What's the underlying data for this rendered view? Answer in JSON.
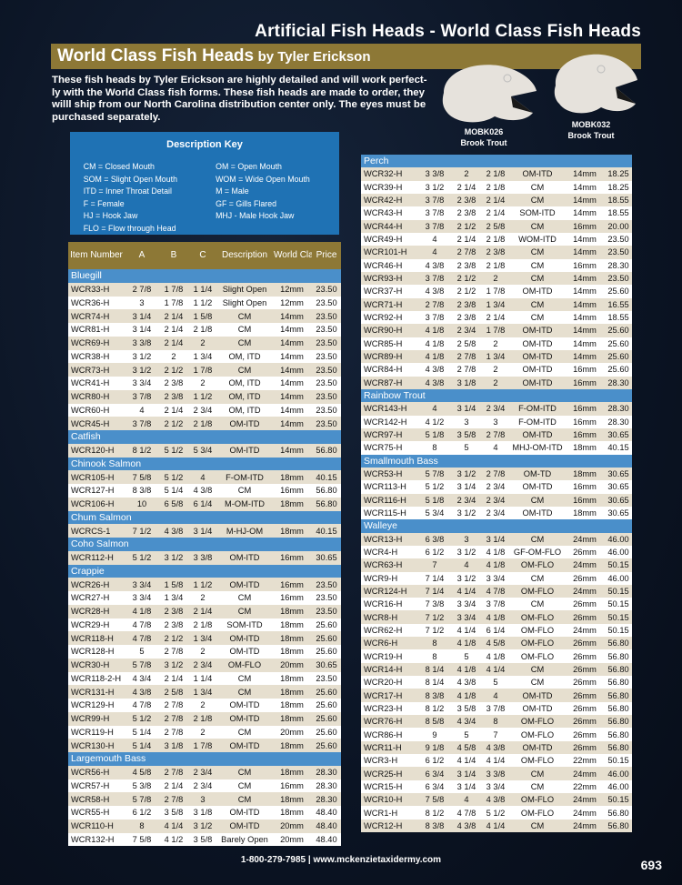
{
  "page_title": "Artificial Fish Heads - World Class Fish Heads",
  "banner": {
    "title": "World Class Fish Heads",
    "byline": "by Tyler Erickson"
  },
  "intro": "These fish heads by Tyler Erickson are highly detailed and will work perfect-ly with the World Class fish forms. These fish heads are made to order, they willl ship from our North Carolina distribution center only. The eyes must be purchased separately.",
  "products": [
    {
      "code": "MOBK026",
      "name": "Brook Trout"
    },
    {
      "code": "MOBK032",
      "name": "Brook Trout"
    }
  ],
  "key": {
    "title": "Description Key",
    "items": [
      "CM = Closed Mouth",
      "OM = Open Mouth",
      "SOM = Slight Open Mouth",
      "WOM = Wide Open Mouth",
      "ITD = Inner Throat Detail",
      "M = Male",
      "F = Female",
      "GF = Gills Flared",
      "HJ = Hook Jaw",
      "MHJ - Male Hook Jaw",
      "FLO = Flow through Head"
    ]
  },
  "columns": [
    "Item Number",
    "A",
    "B",
    "C",
    "Description",
    "World Class Eye",
    "Price"
  ],
  "left_table": [
    {
      "section": "Bluegill",
      "rows": [
        [
          "WCR33-H",
          "2 7/8",
          "1 7/8",
          "1 1/4",
          "Slight Open",
          "12mm",
          "23.50"
        ],
        [
          "WCR36-H",
          "3",
          "1 7/8",
          "1 1/2",
          "Slight Open",
          "12mm",
          "23.50"
        ],
        [
          "WCR74-H",
          "3 1/4",
          "2 1/4",
          "1 5/8",
          "CM",
          "14mm",
          "23.50"
        ],
        [
          "WCR81-H",
          "3 1/4",
          "2 1/4",
          "2 1/8",
          "CM",
          "14mm",
          "23.50"
        ],
        [
          "WCR69-H",
          "3 3/8",
          "2 1/4",
          "2",
          "CM",
          "14mm",
          "23.50"
        ],
        [
          "WCR38-H",
          "3 1/2",
          "2",
          "1 3/4",
          "OM, ITD",
          "14mm",
          "23.50"
        ],
        [
          "WCR73-H",
          "3 1/2",
          "2 1/2",
          "1 7/8",
          "CM",
          "14mm",
          "23.50"
        ],
        [
          "WCR41-H",
          "3 3/4",
          "2 3/8",
          "2",
          "OM, ITD",
          "14mm",
          "23.50"
        ],
        [
          "WCR80-H",
          "3 7/8",
          "2 3/8",
          "1 1/2",
          "OM, ITD",
          "14mm",
          "23.50"
        ],
        [
          "WCR60-H",
          "4",
          "2 1/4",
          "2 3/4",
          "OM, ITD",
          "14mm",
          "23.50"
        ],
        [
          "WCR45-H",
          "3 7/8",
          "2 1/2",
          "2 1/8",
          "OM-ITD",
          "14mm",
          "23.50"
        ]
      ]
    },
    {
      "section": "Catfish",
      "rows": [
        [
          "WCR120-H",
          "8 1/2",
          "5 1/2",
          "5 3/4",
          "OM-ITD",
          "14mm",
          "56.80"
        ]
      ]
    },
    {
      "section": "Chinook Salmon",
      "rows": [
        [
          "WCR105-H",
          "7 5/8",
          "5 1/2",
          "4",
          "F-OM-ITD",
          "18mm",
          "40.15"
        ],
        [
          "WCR127-H",
          "8 3/8",
          "5 1/4",
          "4 3/8",
          "CM",
          "16mm",
          "56.80"
        ],
        [
          "WCR106-H",
          "10",
          "6 5/8",
          "6 1/4",
          "M-OM-ITD",
          "18mm",
          "56.80"
        ]
      ]
    },
    {
      "section": "Chum Salmon",
      "rows": [
        [
          "WCRCS-1",
          "7 1/2",
          "4 3/8",
          "3 1/4",
          "M-HJ-OM",
          "18mm",
          "40.15"
        ]
      ]
    },
    {
      "section": "Coho Salmon",
      "rows": [
        [
          "WCR112-H",
          "5 1/2",
          "3 1/2",
          "3 3/8",
          "OM-ITD",
          "16mm",
          "30.65"
        ]
      ]
    },
    {
      "section": "Crappie",
      "rows": [
        [
          "WCR26-H",
          "3 3/4",
          "1 5/8",
          "1 1/2",
          "OM-ITD",
          "16mm",
          "23.50"
        ],
        [
          "WCR27-H",
          "3 3/4",
          "1 3/4",
          "2",
          "CM",
          "16mm",
          "23.50"
        ],
        [
          "WCR28-H",
          "4 1/8",
          "2 3/8",
          "2 1/4",
          "CM",
          "18mm",
          "23.50"
        ],
        [
          "WCR29-H",
          "4 7/8",
          "2 3/8",
          "2 1/8",
          "SOM-ITD",
          "18mm",
          "25.60"
        ],
        [
          "WCR118-H",
          "4 7/8",
          "2 1/2",
          "1 3/4",
          "OM-ITD",
          "18mm",
          "25.60"
        ],
        [
          "WCR128-H",
          "5",
          "2 7/8",
          "2",
          "OM-ITD",
          "18mm",
          "25.60"
        ],
        [
          "WCR30-H",
          "5 7/8",
          "3 1/2",
          "2 3/4",
          "OM-FLO",
          "20mm",
          "30.65"
        ],
        [
          "WCR118-2-H",
          "4 3/4",
          "2 1/4",
          "1 1/4",
          "CM",
          "18mm",
          "23.50"
        ],
        [
          "WCR131-H",
          "4 3/8",
          "2 5/8",
          "1 3/4",
          "CM",
          "18mm",
          "25.60"
        ],
        [
          "WCR129-H",
          "4 7/8",
          "2 7/8",
          "2",
          "OM-ITD",
          "18mm",
          "25.60"
        ],
        [
          "WCR99-H",
          "5 1/2",
          "2 7/8",
          "2 1/8",
          "OM-ITD",
          "18mm",
          "25.60"
        ],
        [
          "WCR119-H",
          "5 1/4",
          "2 7/8",
          "2",
          "CM",
          "20mm",
          "25.60"
        ],
        [
          "WCR130-H",
          "5 1/4",
          "3 1/8",
          "1 7/8",
          "OM-ITD",
          "18mm",
          "25.60"
        ]
      ]
    },
    {
      "section": "Largemouth Bass",
      "rows": [
        [
          "WCR56-H",
          "4 5/8",
          "2 7/8",
          "2 3/4",
          "CM",
          "18mm",
          "28.30"
        ],
        [
          "WCR57-H",
          "5 3/8",
          "2 1/4",
          "2 3/4",
          "CM",
          "16mm",
          "28.30"
        ],
        [
          "WCR58-H",
          "5 7/8",
          "2 7/8",
          "3",
          "CM",
          "18mm",
          "28.30"
        ],
        [
          "WCR55-H",
          "6 1/2",
          "3 5/8",
          "3 1/8",
          "OM-ITD",
          "18mm",
          "48.40"
        ],
        [
          "WCR110-H",
          "8",
          "4 1/4",
          "3 1/2",
          "OM-ITD",
          "20mm",
          "48.40"
        ],
        [
          "WCR132-H",
          "7 5/8",
          "4 1/2",
          "3 5/8",
          "Barely Open",
          "20mm",
          "48.40"
        ]
      ]
    }
  ],
  "right_table": [
    {
      "section": "Perch",
      "rows": [
        [
          "WCR32-H",
          "3 3/8",
          "2",
          "2 1/8",
          "OM-ITD",
          "14mm",
          "18.25"
        ],
        [
          "WCR39-H",
          "3 1/2",
          "2 1/4",
          "2 1/8",
          "CM",
          "14mm",
          "18.25"
        ],
        [
          "WCR42-H",
          "3 7/8",
          "2 3/8",
          "2 1/4",
          "CM",
          "14mm",
          "18.55"
        ],
        [
          "WCR43-H",
          "3 7/8",
          "2 3/8",
          "2 1/4",
          "SOM-ITD",
          "14mm",
          "18.55"
        ],
        [
          "WCR44-H",
          "3 7/8",
          "2 1/2",
          "2 5/8",
          "CM",
          "16mm",
          "20.00"
        ],
        [
          "WCR49-H",
          "4",
          "2 1/4",
          "2 1/8",
          "WOM-ITD",
          "14mm",
          "23.50"
        ],
        [
          "WCR101-H",
          "4",
          "2 7/8",
          "2 3/8",
          "CM",
          "14mm",
          "23.50"
        ],
        [
          "WCR46-H",
          "4 3/8",
          "2 3/8",
          "2 1/8",
          "CM",
          "16mm",
          "28.30"
        ],
        [
          "WCR93-H",
          "3 7/8",
          "2 1/2",
          "2",
          "CM",
          "14mm",
          "23.50"
        ],
        [
          "WCR37-H",
          "4 3/8",
          "2 1/2",
          "1 7/8",
          "OM-ITD",
          "14mm",
          "25.60"
        ],
        [
          "WCR71-H",
          "2 7/8",
          "2 3/8",
          "1 3/4",
          "CM",
          "14mm",
          "16.55"
        ],
        [
          "WCR92-H",
          "3 7/8",
          "2 3/8",
          "2 1/4",
          "CM",
          "14mm",
          "18.55"
        ],
        [
          "WCR90-H",
          "4 1/8",
          "2 3/4",
          "1 7/8",
          "OM-ITD",
          "14mm",
          "25.60"
        ],
        [
          "WCR85-H",
          "4 1/8",
          "2 5/8",
          "2",
          "OM-ITD",
          "14mm",
          "25.60"
        ],
        [
          "WCR89-H",
          "4 1/8",
          "2 7/8",
          "1 3/4",
          "OM-ITD",
          "14mm",
          "25.60"
        ],
        [
          "WCR84-H",
          "4 3/8",
          "2 7/8",
          "2",
          "OM-ITD",
          "16mm",
          "25.60"
        ],
        [
          "WCR87-H",
          "4 3/8",
          "3 1/8",
          "2",
          "OM-ITD",
          "16mm",
          "28.30"
        ]
      ]
    },
    {
      "section": "Rainbow Trout",
      "rows": [
        [
          "WCR143-H",
          "4",
          "3 1/4",
          "2 3/4",
          "F-OM-ITD",
          "16mm",
          "28.30"
        ],
        [
          "WCR142-H",
          "4 1/2",
          "3",
          "3",
          "F-OM-ITD",
          "16mm",
          "28.30"
        ],
        [
          "WCR97-H",
          "5 1/8",
          "3 5/8",
          "2 7/8",
          "OM-ITD",
          "16mm",
          "30.65"
        ],
        [
          "WCR75-H",
          "8",
          "5",
          "4",
          "MHJ-OM-ITD",
          "18mm",
          "40.15"
        ]
      ]
    },
    {
      "section": "Smallmouth Bass",
      "rows": [
        [
          "WCR53-H",
          "5 7/8",
          "3 1/2",
          "2 7/8",
          "OM-TD",
          "18mm",
          "30.65"
        ],
        [
          "WCR113-H",
          "5 1/2",
          "3 1/4",
          "2 3/4",
          "OM-ITD",
          "16mm",
          "30.65"
        ],
        [
          "WCR116-H",
          "5 1/8",
          "2 3/4",
          "2 3/4",
          "CM",
          "16mm",
          "30.65"
        ],
        [
          "WCR115-H",
          "5 3/4",
          "3 1/2",
          "2 3/4",
          "OM-ITD",
          "18mm",
          "30.65"
        ]
      ]
    },
    {
      "section": "Walleye",
      "rows": [
        [
          "WCR13-H",
          "6 3/8",
          "3",
          "3 1/4",
          "CM",
          "24mm",
          "46.00"
        ],
        [
          "WCR4-H",
          "6 1/2",
          "3 1/2",
          "4 1/8",
          "GF-OM-FLO",
          "26mm",
          "46.00"
        ],
        [
          "WCR63-H",
          "7",
          "4",
          "4 1/8",
          "OM-FLO",
          "24mm",
          "50.15"
        ],
        [
          "WCR9-H",
          "7 1/4",
          "3 1/2",
          "3 3/4",
          "CM",
          "26mm",
          "46.00"
        ],
        [
          "WCR124-H",
          "7 1/4",
          "4 1/4",
          "4 7/8",
          "OM-FLO",
          "24mm",
          "50.15"
        ],
        [
          "WCR16-H",
          "7 3/8",
          "3 3/4",
          "3 7/8",
          "CM",
          "26mm",
          "50.15"
        ],
        [
          "WCR8-H",
          "7 1/2",
          "3 3/4",
          "4 1/8",
          "OM-FLO",
          "26mm",
          "50.15"
        ],
        [
          "WCR62-H",
          "7 1/2",
          "4 1/4",
          "6 1/4",
          "OM-FLO",
          "24mm",
          "50.15"
        ],
        [
          "WCR6-H",
          "8",
          "4 1/8",
          "4 5/8",
          "OM-FLO",
          "26mm",
          "56.80"
        ],
        [
          "WCR19-H",
          "8",
          "5",
          "4 1/8",
          "OM-FLO",
          "26mm",
          "56.80"
        ],
        [
          "WCR14-H",
          "8 1/4",
          "4 1/8",
          "4 1/4",
          "CM",
          "26mm",
          "56.80"
        ],
        [
          "WCR20-H",
          "8 1/4",
          "4 3/8",
          "5",
          "CM",
          "26mm",
          "56.80"
        ],
        [
          "WCR17-H",
          "8 3/8",
          "4 1/8",
          "4",
          "OM-ITD",
          "26mm",
          "56.80"
        ],
        [
          "WCR23-H",
          "8 1/2",
          "3 5/8",
          "3 7/8",
          "OM-ITD",
          "26mm",
          "56.80"
        ],
        [
          "WCR76-H",
          "8 5/8",
          "4 3/4",
          "8",
          "OM-FLO",
          "26mm",
          "56.80"
        ],
        [
          "WCR86-H",
          "9",
          "5",
          "7",
          "OM-FLO",
          "26mm",
          "56.80"
        ],
        [
          "WCR11-H",
          "9 1/8",
          "4 5/8",
          "4 3/8",
          "OM-ITD",
          "26mm",
          "56.80"
        ],
        [
          "WCR3-H",
          "6 1/2",
          "4 1/4",
          "4 1/4",
          "OM-FLO",
          "22mm",
          "50.15"
        ],
        [
          "WCR25-H",
          "6 3/4",
          "3 1/4",
          "3 3/8",
          "CM",
          "24mm",
          "46.00"
        ],
        [
          "WCR15-H",
          "6 3/4",
          "3 1/4",
          "3 3/4",
          "CM",
          "22mm",
          "46.00"
        ],
        [
          "WCR10-H",
          "7 5/8",
          "4",
          "4 3/8",
          "OM-FLO",
          "24mm",
          "50.15"
        ],
        [
          "WCR1-H",
          "8 1/2",
          "4 7/8",
          "5 1/2",
          "OM-FLO",
          "24mm",
          "56.80"
        ],
        [
          "WCR12-H",
          "8 3/8",
          "4 3/8",
          "4 1/4",
          "CM",
          "24mm",
          "56.80"
        ]
      ]
    }
  ],
  "footer": {
    "contact": "1-800-279-7985 | www.mckenzietaxidermy.com",
    "page_number": "693"
  }
}
